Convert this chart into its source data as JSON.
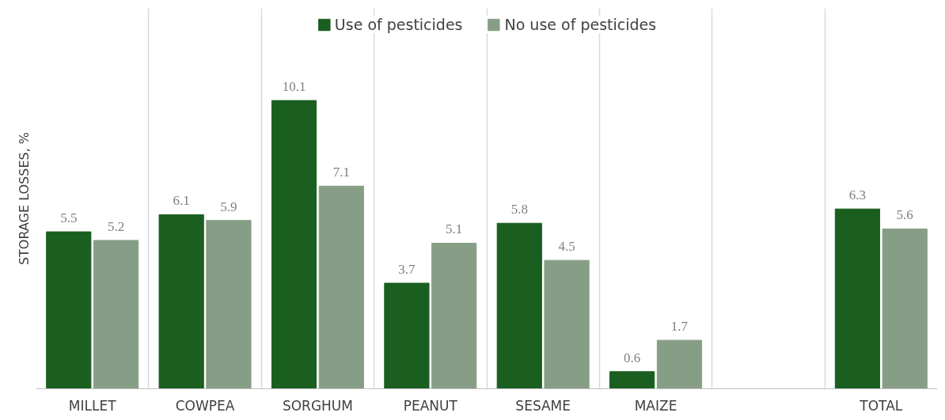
{
  "chart_data": {
    "type": "bar",
    "ylabel": "STORAGE LOSSES, %",
    "categories": [
      "MILLET",
      "COWPEA",
      "SORGHUM",
      "PEANUT",
      "SESAME",
      "MAIZE",
      null,
      "TOTAL"
    ],
    "series": [
      {
        "name": "Use of pesticides",
        "color": "#1a5e20",
        "values": [
          5.5,
          6.1,
          10.1,
          3.7,
          5.8,
          0.6,
          null,
          6.3
        ]
      },
      {
        "name": "No use of pesticides",
        "color": "#869e86",
        "values": [
          5.2,
          5.9,
          7.1,
          5.1,
          4.5,
          1.7,
          null,
          5.6
        ]
      }
    ],
    "data_labels": true,
    "grid": "x",
    "legend": "top"
  }
}
